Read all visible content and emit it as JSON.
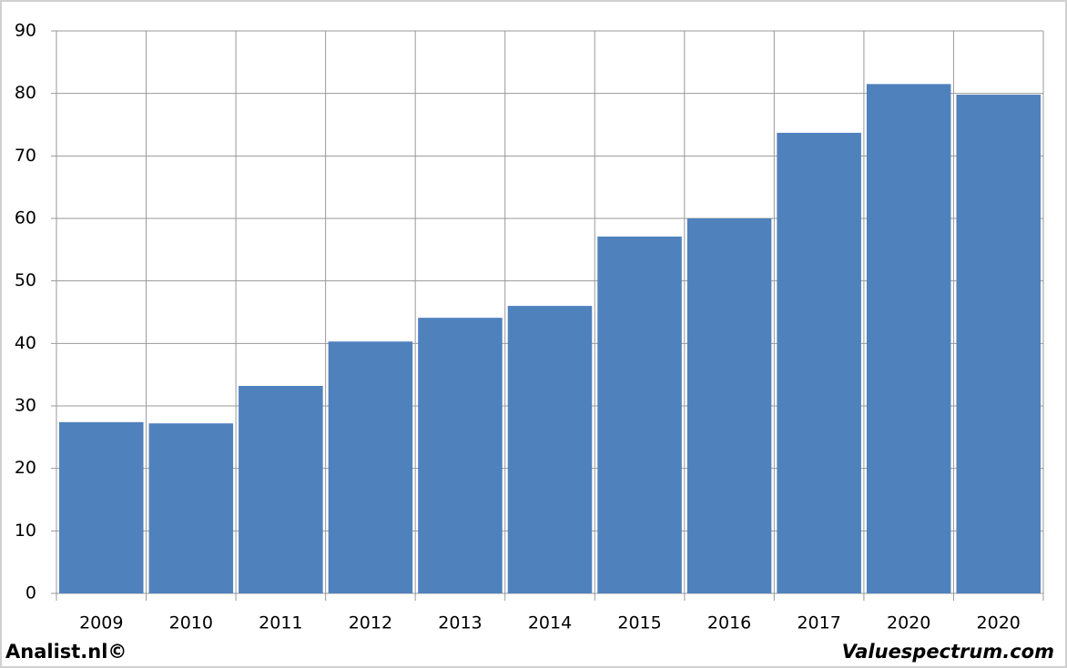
{
  "chart_data": {
    "type": "bar",
    "categories": [
      "2009",
      "2010",
      "2011",
      "2012",
      "2013",
      "2014",
      "2015",
      "2016",
      "2017",
      "2020",
      "2020"
    ],
    "values": [
      27.4,
      27.2,
      33.2,
      40.3,
      44.1,
      46.0,
      57.1,
      60.0,
      73.7,
      81.5,
      79.8
    ],
    "color": "#4f81bd",
    "ylim": [
      0,
      90
    ],
    "yticks": [
      0,
      10,
      20,
      30,
      40,
      50,
      60,
      70,
      80,
      90
    ],
    "grid": true,
    "footer_left": "Analist.nl©",
    "footer_right": "Valuespectrum.com"
  }
}
